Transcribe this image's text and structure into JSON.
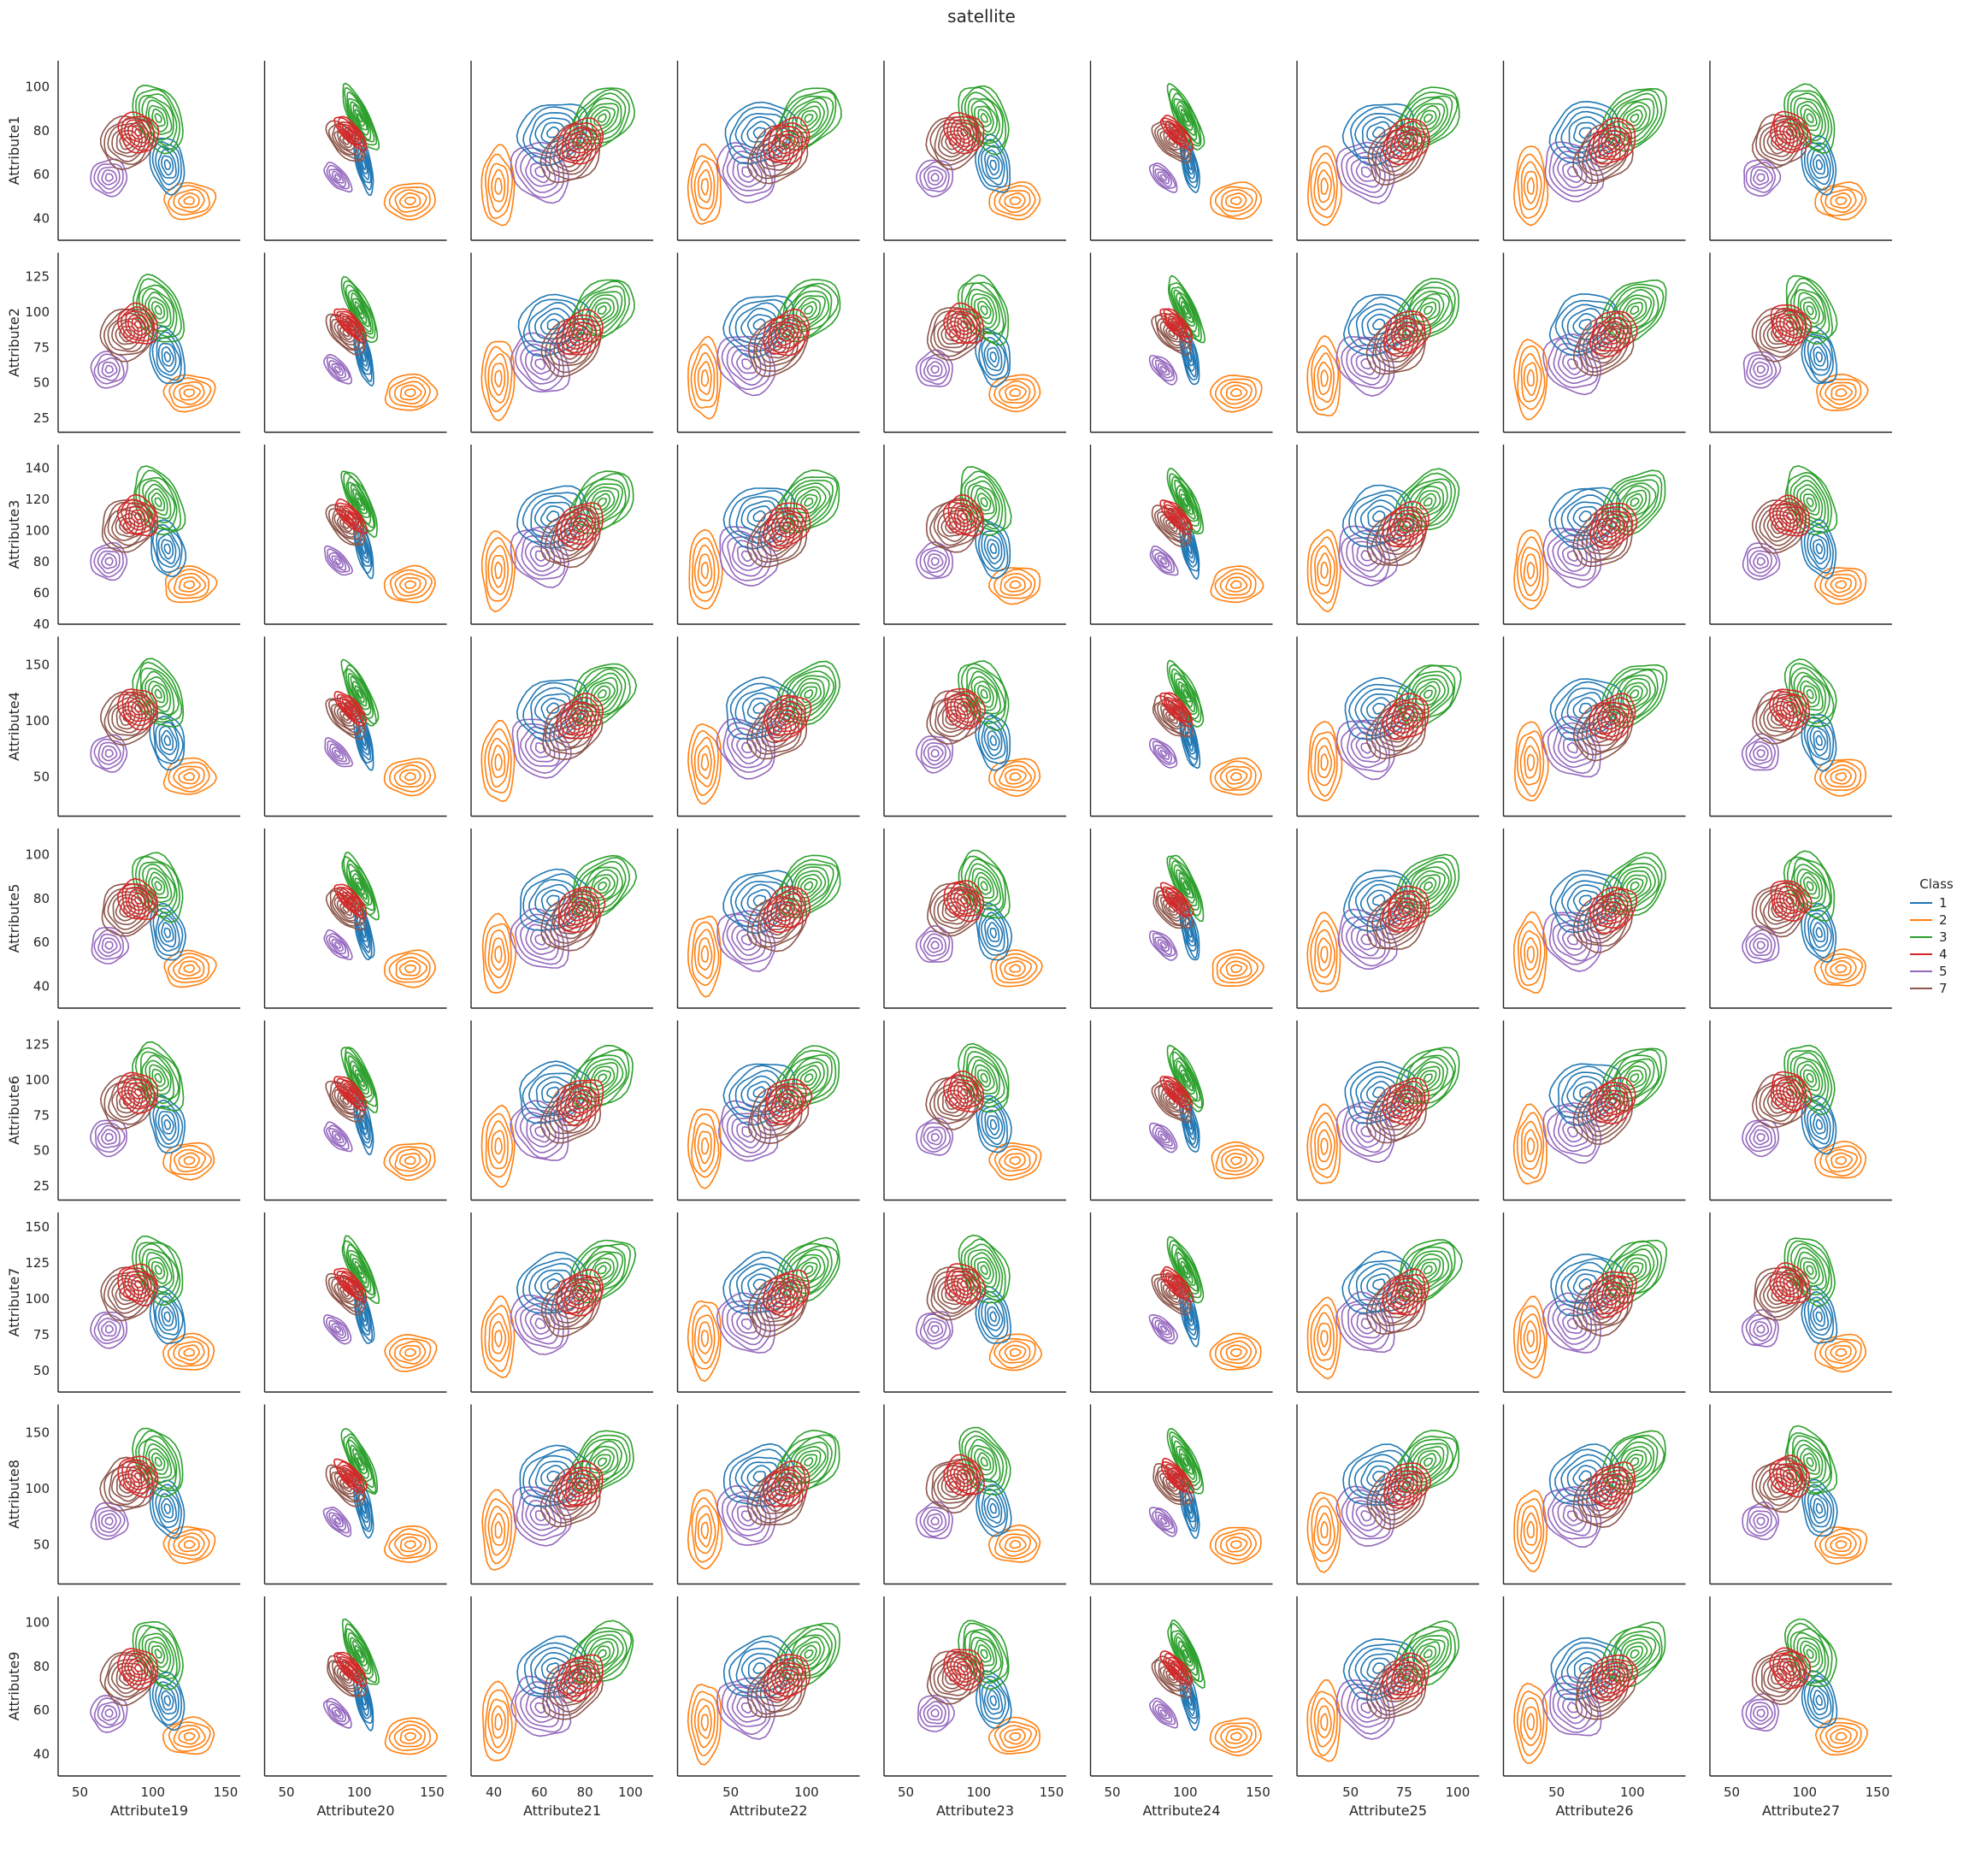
{
  "chart_data": {
    "type": "kde-pairgrid",
    "title": "satellite",
    "x_vars": [
      "Attribute19",
      "Attribute20",
      "Attribute21",
      "Attribute22",
      "Attribute23",
      "Attribute24",
      "Attribute25",
      "Attribute26",
      "Attribute27"
    ],
    "y_vars": [
      "Attribute1",
      "Attribute2",
      "Attribute3",
      "Attribute4",
      "Attribute5",
      "Attribute6",
      "Attribute7",
      "Attribute8",
      "Attribute9"
    ],
    "x_ticks": [
      [
        50,
        100,
        150
      ],
      [
        50,
        100,
        150
      ],
      [
        40,
        60,
        80,
        100
      ],
      [
        50,
        100
      ],
      [
        50,
        100,
        150
      ],
      [
        50,
        100,
        150
      ],
      [
        50,
        75,
        100
      ],
      [
        50,
        100
      ],
      [
        50,
        100,
        150
      ]
    ],
    "x_ranges": [
      [
        35,
        160
      ],
      [
        35,
        160
      ],
      [
        30,
        110
      ],
      [
        15,
        135
      ],
      [
        35,
        160
      ],
      [
        35,
        160
      ],
      [
        25,
        110
      ],
      [
        15,
        135
      ],
      [
        35,
        160
      ]
    ],
    "y_ticks": [
      [
        40,
        60,
        80,
        100
      ],
      [
        25,
        50,
        75,
        100,
        125
      ],
      [
        40,
        60,
        80,
        100,
        120,
        140
      ],
      [
        50,
        100,
        150
      ],
      [
        40,
        60,
        80,
        100
      ],
      [
        25,
        50,
        75,
        100,
        125
      ],
      [
        50,
        75,
        100,
        125,
        150
      ],
      [
        50,
        100,
        150
      ],
      [
        40,
        60,
        80,
        100
      ]
    ],
    "y_ranges": [
      [
        30,
        112
      ],
      [
        15,
        142
      ],
      [
        40,
        155
      ],
      [
        15,
        175
      ],
      [
        30,
        112
      ],
      [
        15,
        142
      ],
      [
        35,
        160
      ],
      [
        15,
        175
      ],
      [
        30,
        112
      ]
    ],
    "legend": {
      "title": "Class",
      "placement": "right",
      "entries": [
        {
          "label": "1",
          "color": "#1f77b4"
        },
        {
          "label": "2",
          "color": "#ff7f0e"
        },
        {
          "label": "3",
          "color": "#2ca02c"
        },
        {
          "label": "4",
          "color": "#d62728"
        },
        {
          "label": "5",
          "color": "#9467bd"
        },
        {
          "label": "7",
          "color": "#8c564b"
        }
      ]
    },
    "class_centers": {
      "1": {
        "band_a": [
          110,
          65
        ],
        "band_b": [
          85,
          90
        ]
      },
      "2": {
        "band_a": [
          125,
          45
        ],
        "band_b": [
          40,
          45
        ],
        "band_c": [
          130,
          130
        ]
      },
      "3": {
        "band_a": [
          100,
          85
        ],
        "band_b": [
          95,
          95
        ]
      },
      "4": {
        "band_a": [
          90,
          80
        ],
        "band_b": [
          85,
          85
        ]
      },
      "5": {
        "band_a": [
          75,
          60
        ],
        "band_b": [
          60,
          60
        ]
      },
      "7": {
        "band_a": [
          75,
          70
        ],
        "band_b": [
          70,
          70
        ]
      }
    },
    "grid": false
  }
}
